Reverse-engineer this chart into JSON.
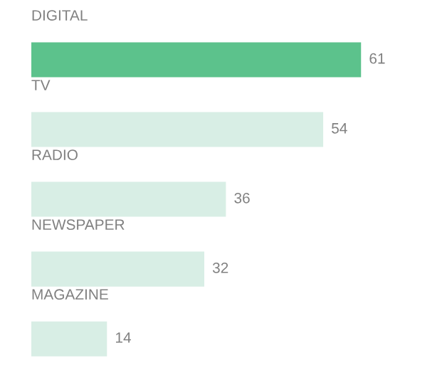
{
  "chart_data": {
    "type": "bar",
    "orientation": "horizontal",
    "categories": [
      "DIGITAL",
      "TV",
      "RADIO",
      "NEWSPAPER",
      "MAGAZINE"
    ],
    "values": [
      61,
      54,
      36,
      32,
      14
    ],
    "colors": [
      "#5cc28c",
      "#d8eee5",
      "#d8eee5",
      "#d8eee5",
      "#d8eee5"
    ],
    "data_labels": true
  }
}
